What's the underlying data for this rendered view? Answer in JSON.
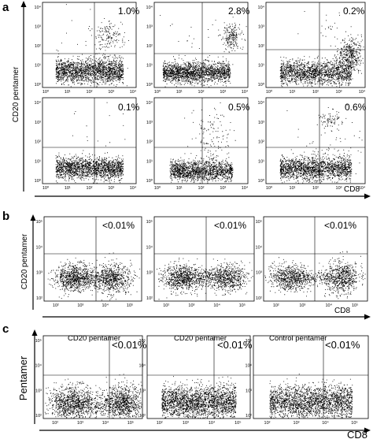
{
  "figure": {
    "section_a": {
      "label": "a",
      "y_axis_title": "CD20 pentamer",
      "x_axis_title": "CD8",
      "x_ticks": [
        "10⁰",
        "10¹",
        "10²",
        "10³",
        "10⁴"
      ],
      "y_ticks": [
        "10⁴",
        "10³",
        "10²",
        "10¹",
        "10⁰"
      ],
      "percentages": [
        "1.0%",
        "2.8%",
        "0.2%",
        "0.1%",
        "0.5%",
        "0.6%"
      ]
    },
    "section_b": {
      "label": "b",
      "y_axis_title": "CD20 pentamer",
      "x_axis_title": "CD8",
      "x_ticks": [
        "10²",
        "10³",
        "10⁴",
        "10⁵"
      ],
      "y_ticks": [
        "10⁵",
        "10⁴",
        "10³",
        "10²"
      ],
      "percentages": [
        "<0.01%",
        "<0.01%",
        "<0.01%"
      ]
    },
    "section_c": {
      "label": "c",
      "y_axis_title": "Pentamer",
      "x_axis_title": "CD8",
      "x_ticks": [
        "10²",
        "10³",
        "10⁴",
        "10⁵"
      ],
      "y_ticks": [
        "10⁵",
        "10⁴",
        "10³",
        "10²"
      ],
      "headers": [
        "CD20 pentamer",
        "CD20 pentamer",
        "Control pentamer"
      ],
      "percentages": [
        "<0.01%",
        "<0.01%",
        "<0.01%"
      ]
    }
  }
}
